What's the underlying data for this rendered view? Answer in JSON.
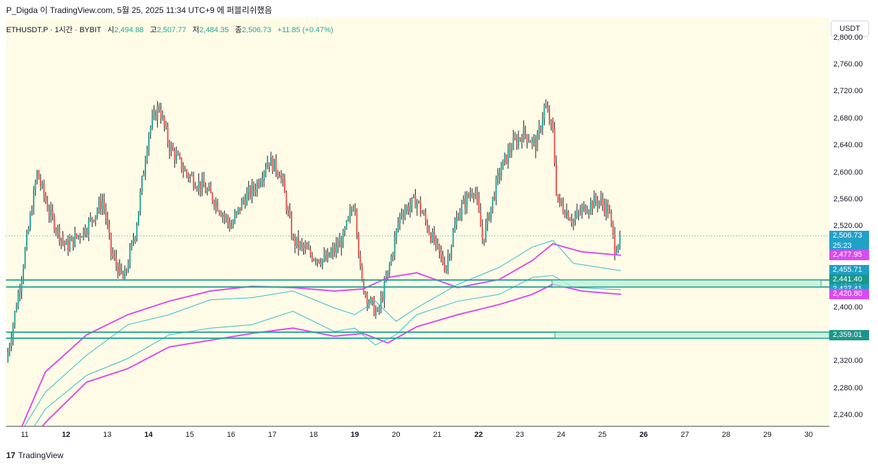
{
  "header": {
    "caption": "P_Digda 이 TradingView.com, 5월 25, 2025 11:34 UTC+9 에 퍼블리쉬했음"
  },
  "legend": {
    "symbol": "ETHUSDT.P · 1시간 · BYBIT",
    "open_label": "시",
    "open": "2,494.88",
    "high_label": "고",
    "high": "2,507.77",
    "low_label": "저",
    "low": "2,484.35",
    "close_label": "종",
    "close": "2,506.73",
    "change": "+11.85 (+0.47%)"
  },
  "unit": "USDT",
  "footer": {
    "logo": "17",
    "brand": "TradingView"
  },
  "colors": {
    "up": "#26a69a",
    "down": "#ef5350",
    "upper_wick": "#131722",
    "magenta": "#d84bf2",
    "cyan": "#31b8d6",
    "zone": "#26a69a",
    "bg": "#fefbe6"
  },
  "chart_data": {
    "type": "candlestick",
    "symbol": "ETHUSDT.P",
    "interval": "1시간",
    "exchange": "BYBIT",
    "ylim": [
      2225,
      2830
    ],
    "y_ticks": [
      2240,
      2280,
      2320,
      2360,
      2400,
      2440,
      2480,
      2520,
      2560,
      2600,
      2640,
      2680,
      2720,
      2760,
      2800
    ],
    "y_tick_labels": [
      "2,240.00",
      "2,280.00",
      "2,320.00",
      "2,360.00",
      "2,400.00",
      "2,440.00",
      "2,480.00",
      "2,520.00",
      "2,560.00",
      "2,600.00",
      "2,640.00",
      "2,680.00",
      "2,720.00",
      "2,760.00",
      "2,800.00"
    ],
    "x_range_days": [
      10.55,
      30.5
    ],
    "x_ticks": [
      {
        "day": 11,
        "label": "11",
        "bold": false
      },
      {
        "day": 12,
        "label": "12",
        "bold": true
      },
      {
        "day": 13,
        "label": "13",
        "bold": false
      },
      {
        "day": 14,
        "label": "14",
        "bold": true
      },
      {
        "day": 15,
        "label": "15",
        "bold": false
      },
      {
        "day": 16,
        "label": "16",
        "bold": false
      },
      {
        "day": 17,
        "label": "17",
        "bold": false
      },
      {
        "day": 18,
        "label": "18",
        "bold": false
      },
      {
        "day": 19,
        "label": "19",
        "bold": true
      },
      {
        "day": 20,
        "label": "20",
        "bold": false
      },
      {
        "day": 21,
        "label": "21",
        "bold": false
      },
      {
        "day": 22,
        "label": "22",
        "bold": true
      },
      {
        "day": 23,
        "label": "23",
        "bold": false
      },
      {
        "day": 24,
        "label": "24",
        "bold": false
      },
      {
        "day": 25,
        "label": "25",
        "bold": false
      },
      {
        "day": 26,
        "label": "26",
        "bold": true
      },
      {
        "day": 27,
        "label": "27",
        "bold": false
      },
      {
        "day": 28,
        "label": "28",
        "bold": false
      },
      {
        "day": 29,
        "label": "29",
        "bold": false
      },
      {
        "day": 30,
        "label": "30",
        "bold": false
      }
    ],
    "price_path": [
      [
        10.55,
        2320
      ],
      [
        10.9,
        2440
      ],
      [
        11.3,
        2600
      ],
      [
        11.6,
        2540
      ],
      [
        12.0,
        2490
      ],
      [
        12.5,
        2520
      ],
      [
        12.9,
        2560
      ],
      [
        13.1,
        2480
      ],
      [
        13.4,
        2440
      ],
      [
        13.7,
        2520
      ],
      [
        14.0,
        2660
      ],
      [
        14.25,
        2700
      ],
      [
        14.5,
        2640
      ],
      [
        14.9,
        2600
      ],
      [
        15.3,
        2580
      ],
      [
        15.6,
        2560
      ],
      [
        16.0,
        2520
      ],
      [
        16.3,
        2560
      ],
      [
        16.6,
        2580
      ],
      [
        16.9,
        2620
      ],
      [
        17.2,
        2600
      ],
      [
        17.5,
        2500
      ],
      [
        17.9,
        2480
      ],
      [
        18.3,
        2470
      ],
      [
        18.7,
        2500
      ],
      [
        19.0,
        2560
      ],
      [
        19.15,
        2440
      ],
      [
        19.35,
        2410
      ],
      [
        19.55,
        2390
      ],
      [
        19.8,
        2450
      ],
      [
        20.1,
        2540
      ],
      [
        20.5,
        2560
      ],
      [
        20.9,
        2500
      ],
      [
        21.2,
        2460
      ],
      [
        21.5,
        2540
      ],
      [
        21.9,
        2580
      ],
      [
        22.1,
        2500
      ],
      [
        22.5,
        2600
      ],
      [
        22.8,
        2640
      ],
      [
        23.1,
        2660
      ],
      [
        23.4,
        2640
      ],
      [
        23.6,
        2700
      ],
      [
        23.8,
        2660
      ],
      [
        23.9,
        2560
      ],
      [
        24.3,
        2530
      ],
      [
        24.6,
        2550
      ],
      [
        24.9,
        2560
      ],
      [
        25.15,
        2545
      ],
      [
        25.3,
        2490
      ],
      [
        25.45,
        2507
      ]
    ],
    "last_close": 2506.73,
    "overlays": [
      {
        "name": "magenta-mid",
        "color": "magenta",
        "points": [
          [
            10.55,
            2170
          ],
          [
            11.5,
            2305
          ],
          [
            12.5,
            2360
          ],
          [
            13.5,
            2390
          ],
          [
            14.5,
            2410
          ],
          [
            15.5,
            2425
          ],
          [
            16.5,
            2432
          ],
          [
            17.5,
            2430
          ],
          [
            18.5,
            2425
          ],
          [
            19.2,
            2428
          ],
          [
            19.8,
            2445
          ],
          [
            20.5,
            2452
          ],
          [
            21.5,
            2430
          ],
          [
            22.5,
            2442
          ],
          [
            23.3,
            2470
          ],
          [
            23.8,
            2495
          ],
          [
            24.5,
            2483
          ],
          [
            25.45,
            2478
          ]
        ]
      },
      {
        "name": "magenta-lower",
        "color": "magenta",
        "points": [
          [
            10.55,
            2150
          ],
          [
            11.5,
            2230
          ],
          [
            12.5,
            2290
          ],
          [
            13.5,
            2310
          ],
          [
            14.5,
            2342
          ],
          [
            15.5,
            2352
          ],
          [
            16.5,
            2362
          ],
          [
            17.5,
            2370
          ],
          [
            18.5,
            2358
          ],
          [
            19.2,
            2362
          ],
          [
            19.8,
            2348
          ],
          [
            20.5,
            2372
          ],
          [
            21.5,
            2390
          ],
          [
            22.5,
            2405
          ],
          [
            23.3,
            2420
          ],
          [
            23.8,
            2435
          ],
          [
            24.5,
            2425
          ],
          [
            25.45,
            2420
          ]
        ]
      },
      {
        "name": "cyan-upper",
        "color": "cyan",
        "points": [
          [
            10.55,
            2180
          ],
          [
            11.5,
            2275
          ],
          [
            12.5,
            2330
          ],
          [
            13.5,
            2375
          ],
          [
            14.5,
            2390
          ],
          [
            15.5,
            2412
          ],
          [
            16.5,
            2415
          ],
          [
            17.5,
            2425
          ],
          [
            18.5,
            2400
          ],
          [
            19.0,
            2390
          ],
          [
            19.5,
            2410
          ],
          [
            20.0,
            2380
          ],
          [
            20.5,
            2400
          ],
          [
            21.5,
            2435
          ],
          [
            22.5,
            2460
          ],
          [
            23.3,
            2490
          ],
          [
            23.8,
            2500
          ],
          [
            24.3,
            2466
          ],
          [
            25.45,
            2455
          ]
        ]
      },
      {
        "name": "cyan-lower",
        "color": "cyan",
        "points": [
          [
            10.55,
            2160
          ],
          [
            11.5,
            2250
          ],
          [
            12.5,
            2300
          ],
          [
            13.5,
            2325
          ],
          [
            14.5,
            2360
          ],
          [
            15.5,
            2370
          ],
          [
            16.5,
            2375
          ],
          [
            17.5,
            2395
          ],
          [
            18.5,
            2365
          ],
          [
            19.0,
            2370
          ],
          [
            19.5,
            2345
          ],
          [
            20.0,
            2360
          ],
          [
            20.5,
            2390
          ],
          [
            21.5,
            2410
          ],
          [
            22.5,
            2420
          ],
          [
            23.3,
            2445
          ],
          [
            23.8,
            2448
          ],
          [
            24.3,
            2430
          ],
          [
            25.45,
            2427
          ]
        ]
      }
    ],
    "zones": [
      {
        "name": "zone-upper",
        "top": 2441.4,
        "bottom": 2431.0,
        "from_day": 10.55,
        "to_day": 30.5,
        "box_from": 23.78,
        "box_to": 30.3
      },
      {
        "name": "zone-lower",
        "top": 2364,
        "bottom": 2355,
        "from_day": 10.55,
        "to_day": 30.5,
        "box_from": 23.85,
        "box_to": 30.5
      }
    ],
    "price_labels": [
      {
        "value": 2506.73,
        "text": "2,506.73",
        "sub": "25:23",
        "color": "#22a0c8"
      },
      {
        "value": 2477.95,
        "text": "2,477.95",
        "color": "#d84bf2"
      },
      {
        "value": 2455.71,
        "text": "2,455.71",
        "color": "#1f9fc4"
      },
      {
        "value": 2441.4,
        "text": "2,441.40",
        "color": "#1b9688"
      },
      {
        "value": 2431.0,
        "text": "2,431.00",
        "color": "#1b9688"
      },
      {
        "value": 2427.41,
        "text": "2,427.41",
        "color": "#1f9fc4"
      },
      {
        "value": 2420.8,
        "text": "2,420.80",
        "color": "#d84bf2"
      },
      {
        "value": 2359.01,
        "text": "2,359.01",
        "color": "#1b9688"
      }
    ]
  }
}
